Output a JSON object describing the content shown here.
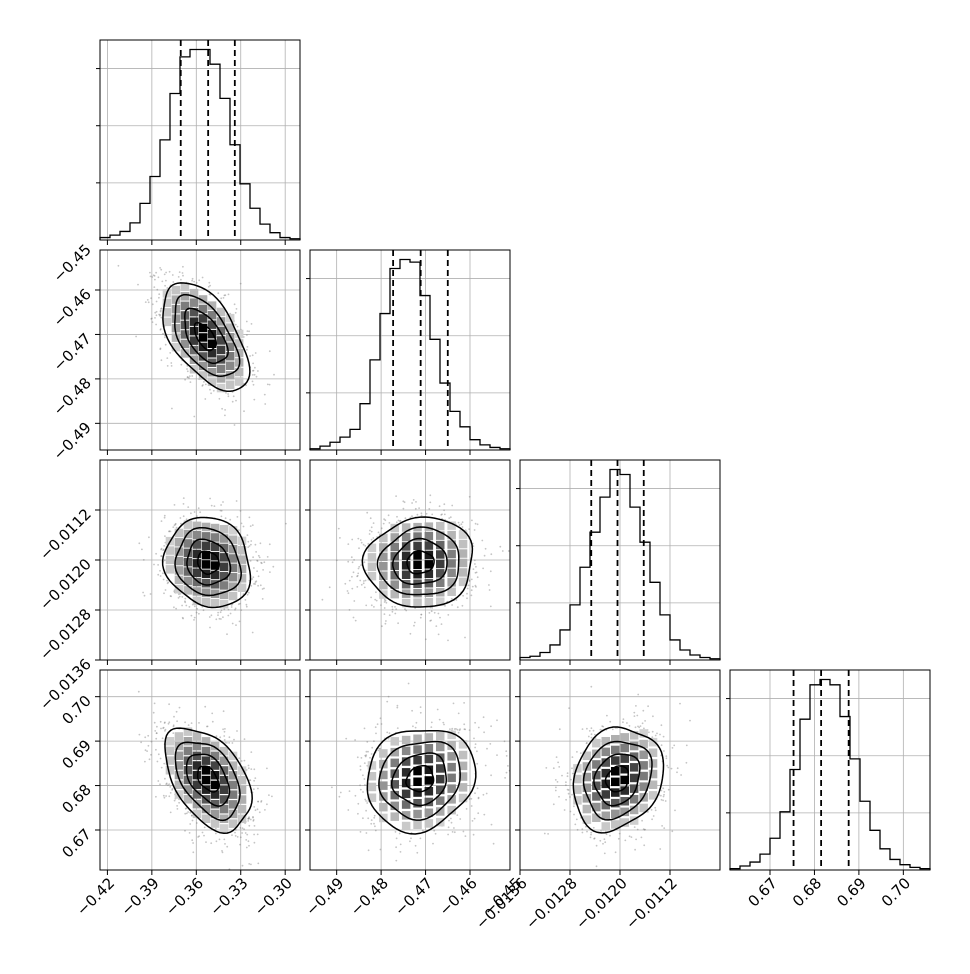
{
  "chart_data": {
    "type": "corner",
    "parameters": [
      {
        "lim": [
          -0.425,
          -0.29
        ],
        "ticks": [
          -0.42,
          -0.39,
          -0.36,
          -0.33,
          -0.3
        ],
        "tick_labels": [
          "−0.42",
          "−0.39",
          "−0.36",
          "−0.33",
          "−0.30"
        ],
        "quantiles": [
          -0.3705,
          -0.352,
          -0.334
        ],
        "hist_edges": [
          -0.425,
          -0.29
        ],
        "hist_counts": [
          2,
          4,
          7,
          14,
          30,
          52,
          82,
          120,
          150,
          156,
          156,
          144,
          116,
          78,
          46,
          26,
          13,
          6,
          2,
          1
        ]
      },
      {
        "lim": [
          -0.496,
          -0.451
        ],
        "ticks": [
          -0.49,
          -0.48,
          -0.47,
          -0.46,
          -0.45
        ],
        "tick_labels": [
          "−0.49",
          "−0.48",
          "−0.47",
          "−0.46",
          "−0.45"
        ],
        "quantiles": [
          -0.4773,
          -0.4711,
          -0.465
        ],
        "hist_edges": [
          -0.496,
          -0.451
        ],
        "hist_counts": [
          1,
          3,
          6,
          10,
          16,
          36,
          70,
          106,
          141,
          148,
          146,
          120,
          86,
          52,
          30,
          18,
          8,
          4,
          2,
          1
        ]
      },
      {
        "lim": [
          -0.0136,
          -0.0104
        ],
        "ticks": [
          -0.0136,
          -0.0128,
          -0.012,
          -0.0112
        ],
        "tick_labels": [
          "−0.0136",
          "−0.0128",
          "−0.0120",
          "−0.0112"
        ],
        "quantiles": [
          -0.01246,
          -0.01204,
          -0.01162
        ],
        "hist_edges": [
          -0.0136,
          -0.0104
        ],
        "hist_counts": [
          2,
          3,
          6,
          12,
          24,
          44,
          74,
          102,
          130,
          152,
          148,
          122,
          94,
          62,
          36,
          16,
          8,
          4,
          2,
          1
        ]
      },
      {
        "lim": [
          0.661,
          0.706
        ],
        "ticks": [
          0.67,
          0.68,
          0.69,
          0.7
        ],
        "tick_labels": [
          "0.67",
          "0.68",
          "0.69",
          "0.70"
        ],
        "quantiles": [
          0.6753,
          0.6815,
          0.6877
        ],
        "hist_edges": [
          0.661,
          0.706
        ],
        "hist_counts": [
          1,
          3,
          6,
          12,
          24,
          44,
          76,
          114,
          140,
          144,
          140,
          116,
          84,
          52,
          30,
          16,
          8,
          4,
          2,
          1
        ]
      }
    ],
    "pairs": [
      {
        "row": 1,
        "col": 0,
        "center": [
          -0.354,
          -0.4705
        ],
        "sx": 0.0145,
        "sy": 0.0061,
        "rho": -0.55
      },
      {
        "row": 2,
        "col": 0,
        "center": [
          -0.352,
          -0.01204
        ],
        "sx": 0.0145,
        "sy": 0.00036,
        "rho": -0.12
      },
      {
        "row": 2,
        "col": 1,
        "center": [
          -0.4712,
          -0.01204
        ],
        "sx": 0.0061,
        "sy": 0.00036,
        "rho": 0.05
      },
      {
        "row": 3,
        "col": 0,
        "center": [
          -0.352,
          0.6815
        ],
        "sx": 0.0145,
        "sy": 0.0058,
        "rho": -0.45
      },
      {
        "row": 3,
        "col": 1,
        "center": [
          -0.4712,
          0.6815
        ],
        "sx": 0.0061,
        "sy": 0.0058,
        "rho": 0.12
      },
      {
        "row": 3,
        "col": 2,
        "center": [
          -0.01204,
          0.6815
        ],
        "sx": 0.00036,
        "sy": 0.0058,
        "rho": 0.18
      }
    ],
    "contour_levels_sigma": [
      0.5,
      1.0,
      1.5,
      2.0
    ],
    "grid": true,
    "colors": {
      "line": "#000000",
      "grid": "#b0b0b0",
      "points": "#7f7f7f"
    }
  }
}
